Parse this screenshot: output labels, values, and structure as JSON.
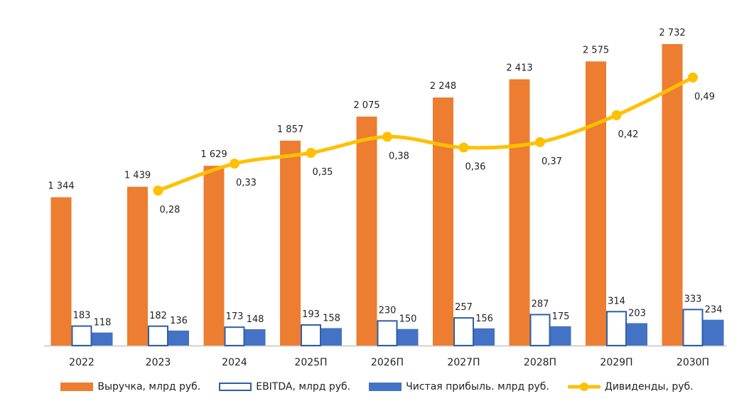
{
  "chart_data": {
    "type": "bar",
    "categories": [
      "2022",
      "2023",
      "2024",
      "2025П",
      "2026П",
      "2027П",
      "2028П",
      "2029П",
      "2030П"
    ],
    "series": [
      {
        "name": "Выручка, млрд руб.",
        "type": "bar",
        "color": "#ED7D31",
        "values": [
          1344,
          1439,
          1629,
          1857,
          2075,
          2248,
          2413,
          2575,
          2732
        ],
        "labels": [
          "1 344",
          "1 439",
          "1 629",
          "1 857",
          "2 075",
          "2 248",
          "2 413",
          "2 575",
          "2 732"
        ]
      },
      {
        "name": "EBITDA, млрд руб.",
        "type": "bar-outline",
        "color": "#2E5FA8",
        "values": [
          183,
          182,
          173,
          193,
          230,
          257,
          287,
          314,
          333
        ],
        "labels": [
          "183",
          "182",
          "173",
          "193",
          "230",
          "257",
          "287",
          "314",
          "333"
        ]
      },
      {
        "name": "Чистая прибыль. млрд руб.",
        "type": "bar",
        "color": "#4472C4",
        "values": [
          118,
          136,
          148,
          158,
          150,
          156,
          175,
          203,
          234
        ],
        "labels": [
          "118",
          "136",
          "148",
          "158",
          "150",
          "156",
          "175",
          "203",
          "234"
        ]
      },
      {
        "name": "Дивиденды, руб.",
        "type": "line",
        "color": "#FFC000",
        "values": [
          null,
          0.28,
          0.33,
          0.35,
          0.38,
          0.36,
          0.37,
          0.42,
          0.49
        ],
        "labels": [
          "",
          "0,28",
          "0,33",
          "0,35",
          "0,38",
          "0,36",
          "0,37",
          "0,42",
          "0,49"
        ]
      }
    ],
    "legend": "bottom"
  }
}
